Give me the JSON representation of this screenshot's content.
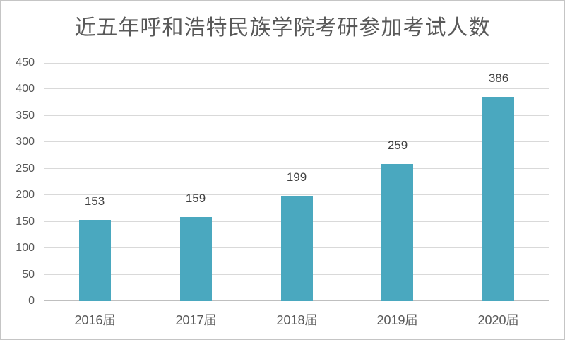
{
  "chart_data": {
    "type": "bar",
    "title": "近五年呼和浩特民族学院考研参加考试人数",
    "categories": [
      "2016届",
      "2017届",
      "2018届",
      "2019届",
      "2020届"
    ],
    "values": [
      153,
      159,
      199,
      259,
      386
    ],
    "xlabel": "",
    "ylabel": "",
    "ylim": [
      0,
      450
    ],
    "yticks": [
      0,
      50,
      100,
      150,
      200,
      250,
      300,
      350,
      400,
      450
    ],
    "grid": "horizontal",
    "legend": "none",
    "data_labels": true
  },
  "colors": {
    "bar": "#4AA8BF",
    "gridline": "#D9D9D9",
    "axis_line": "#BFBFBF",
    "title_text": "#595959",
    "tick_text": "#595959",
    "data_label_text": "#404040",
    "background": "#FFFFFF",
    "frame_border": "#C5C5C5"
  }
}
